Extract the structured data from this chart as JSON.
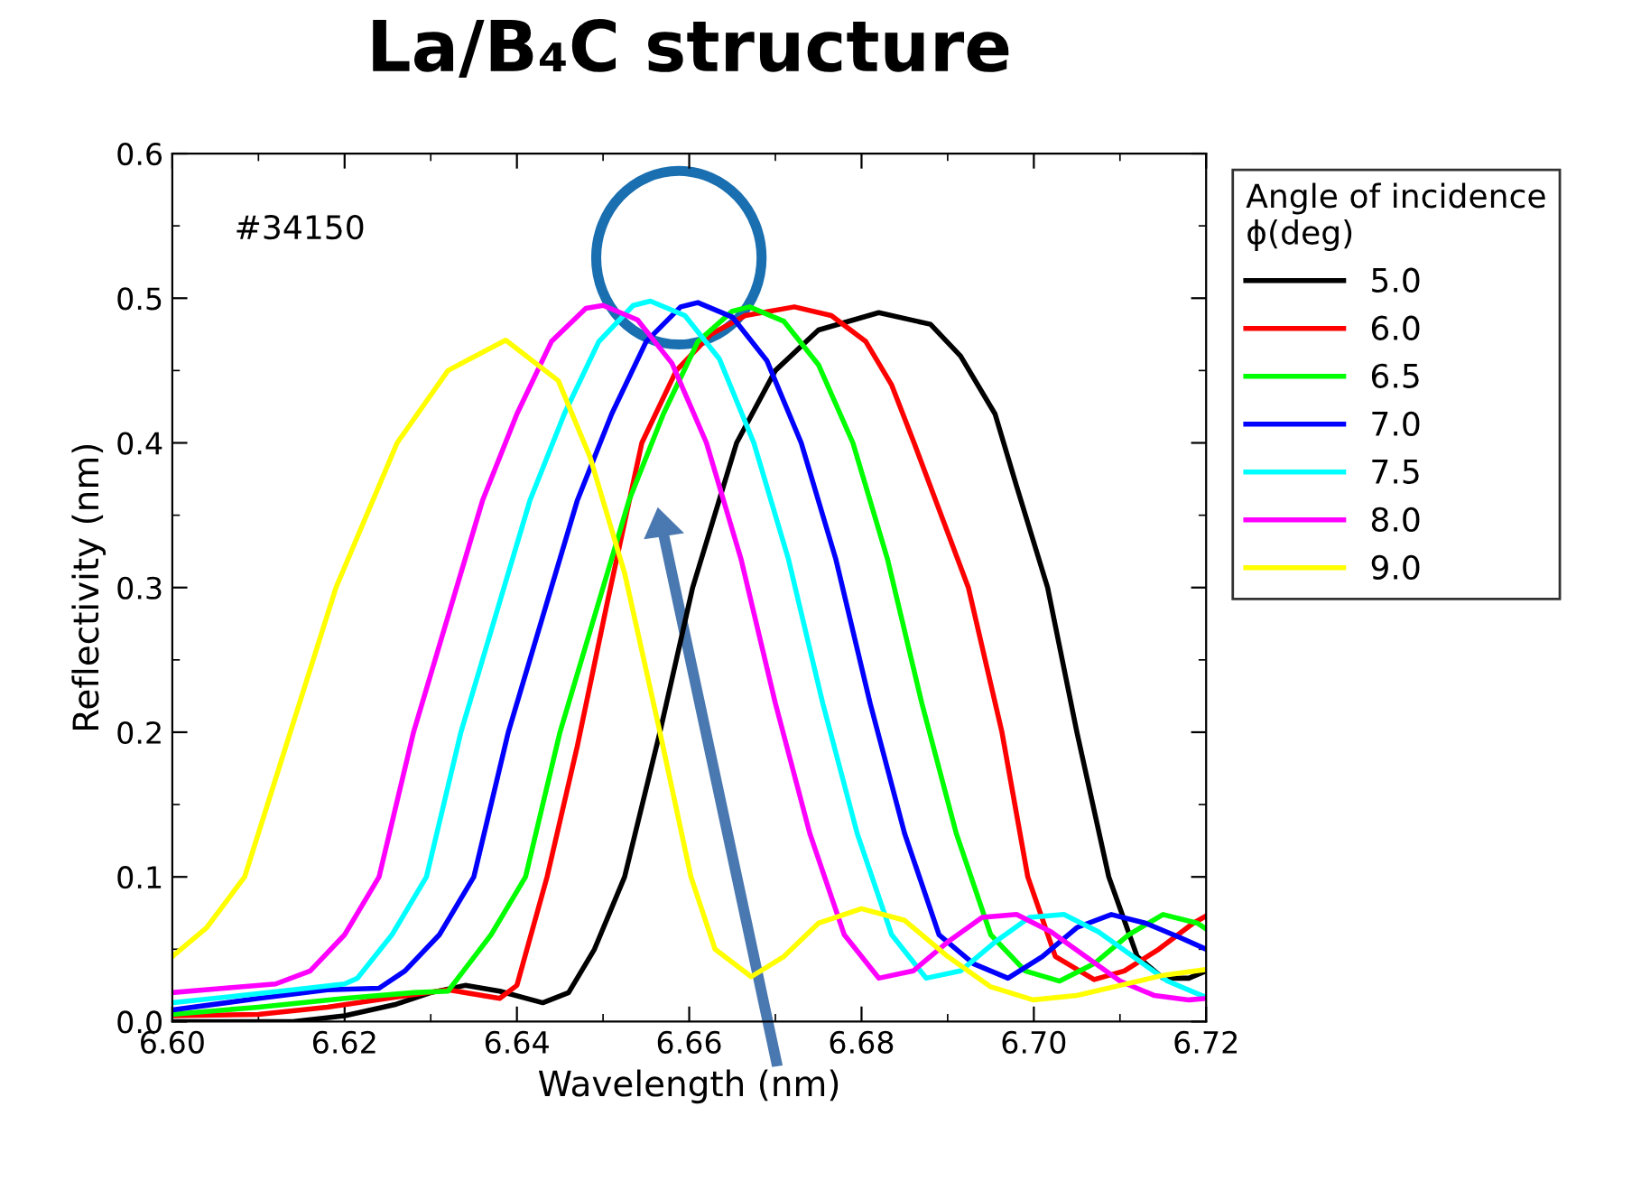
{
  "chart_data": {
    "type": "line",
    "title": "La/B₄C structure",
    "xlabel": "Wavelength (nm)",
    "ylabel": "Reflectivity (nm)",
    "legend_title": "Angle of incidence\nϕ(deg)",
    "annotations": [
      "#34150"
    ],
    "xlim": [
      6.6,
      6.72
    ],
    "xticks": [
      {
        "value": 6.6,
        "label": "6.60"
      },
      6.62,
      6.64,
      6.66,
      6.68,
      {
        "value": 6.7,
        "label": "6.70"
      },
      6.72
    ],
    "ylim": [
      0.0,
      0.6
    ],
    "yticks": [
      {
        "value": 0.0,
        "label": "0.0"
      },
      0.1,
      0.2,
      0.3,
      0.4,
      0.5,
      0.6
    ],
    "grid": false,
    "legend": "top right",
    "marker": "none",
    "line_style": "solid",
    "series": [
      {
        "name": "5.0",
        "color": "#000000",
        "x": [
          6.6,
          6.614,
          6.62,
          6.626,
          6.63,
          6.634,
          6.638,
          6.643,
          6.646,
          6.649,
          6.6525,
          6.6566,
          6.6604,
          6.6655,
          6.67,
          6.675,
          6.682,
          6.688,
          6.6915,
          6.6955,
          6.698,
          6.7016,
          6.705,
          6.7087,
          6.712,
          6.715,
          6.718,
          6.72
        ],
        "values": [
          0.0,
          0.0,
          0.004,
          0.012,
          0.02,
          0.025,
          0.021,
          0.013,
          0.02,
          0.05,
          0.1,
          0.2,
          0.3,
          0.4,
          0.45,
          0.478,
          0.49,
          0.482,
          0.46,
          0.42,
          0.37,
          0.3,
          0.2,
          0.1,
          0.045,
          0.03,
          0.03,
          0.035
        ]
      },
      {
        "name": "6.0",
        "color": "#ff0000",
        "x": [
          6.6,
          6.61,
          6.618,
          6.626,
          6.632,
          6.638,
          6.64,
          6.6435,
          6.647,
          6.6505,
          6.6545,
          6.6585,
          6.6625,
          6.6665,
          6.6722,
          6.6765,
          6.6805,
          6.6835,
          6.6861,
          6.6924,
          6.6963,
          6.6993,
          6.7025,
          6.707,
          6.7105,
          6.7145,
          6.7185,
          6.72
        ],
        "values": [
          0.004,
          0.005,
          0.01,
          0.017,
          0.022,
          0.016,
          0.025,
          0.1,
          0.19,
          0.29,
          0.4,
          0.45,
          0.475,
          0.488,
          0.494,
          0.488,
          0.47,
          0.44,
          0.4,
          0.3,
          0.2,
          0.1,
          0.045,
          0.029,
          0.035,
          0.05,
          0.068,
          0.073
        ]
      },
      {
        "name": "6.5",
        "color": "#00ff00",
        "x": [
          6.6,
          6.61,
          6.62,
          6.628,
          6.632,
          6.637,
          6.641,
          6.645,
          6.649,
          6.653,
          6.657,
          6.661,
          6.665,
          6.667,
          6.671,
          6.675,
          6.679,
          6.683,
          6.687,
          6.691,
          6.695,
          6.699,
          6.703,
          6.707,
          6.711,
          6.715,
          6.719,
          6.72
        ],
        "values": [
          0.005,
          0.01,
          0.016,
          0.02,
          0.021,
          0.06,
          0.1,
          0.2,
          0.28,
          0.36,
          0.42,
          0.47,
          0.491,
          0.494,
          0.484,
          0.454,
          0.4,
          0.32,
          0.22,
          0.13,
          0.06,
          0.035,
          0.028,
          0.04,
          0.06,
          0.074,
          0.068,
          0.064
        ]
      },
      {
        "name": "7.0",
        "color": "#0000ff",
        "x": [
          6.6,
          6.61,
          6.618,
          6.624,
          6.627,
          6.631,
          6.635,
          6.639,
          6.643,
          6.647,
          6.651,
          6.655,
          6.659,
          6.661,
          6.665,
          6.669,
          6.673,
          6.677,
          6.681,
          6.685,
          6.689,
          6.693,
          6.697,
          6.701,
          6.705,
          6.709,
          6.713,
          6.717,
          6.72
        ],
        "values": [
          0.008,
          0.016,
          0.022,
          0.023,
          0.035,
          0.06,
          0.1,
          0.2,
          0.28,
          0.36,
          0.42,
          0.47,
          0.494,
          0.497,
          0.487,
          0.457,
          0.4,
          0.32,
          0.22,
          0.13,
          0.06,
          0.04,
          0.03,
          0.045,
          0.065,
          0.074,
          0.068,
          0.058,
          0.05
        ]
      },
      {
        "name": "7.5",
        "color": "#00ffff",
        "x": [
          6.6,
          6.608,
          6.614,
          6.62,
          6.6215,
          6.6255,
          6.6295,
          6.6335,
          6.6375,
          6.6415,
          6.6455,
          6.6495,
          6.6535,
          6.6555,
          6.6595,
          6.6635,
          6.6675,
          6.6715,
          6.6755,
          6.6795,
          6.6835,
          6.6875,
          6.6915,
          6.6955,
          6.6995,
          6.7035,
          6.7075,
          6.7115,
          6.7155,
          6.7195,
          6.72
        ],
        "values": [
          0.013,
          0.018,
          0.022,
          0.026,
          0.03,
          0.06,
          0.1,
          0.2,
          0.28,
          0.36,
          0.42,
          0.47,
          0.495,
          0.498,
          0.488,
          0.458,
          0.4,
          0.32,
          0.22,
          0.13,
          0.06,
          0.03,
          0.035,
          0.055,
          0.072,
          0.074,
          0.062,
          0.045,
          0.028,
          0.018,
          0.017
        ]
      },
      {
        "name": "8.0",
        "color": "#ff00ff",
        "x": [
          6.6,
          6.606,
          6.612,
          6.616,
          6.62,
          6.624,
          6.628,
          6.632,
          6.636,
          6.64,
          6.644,
          6.648,
          6.65,
          6.654,
          6.658,
          6.662,
          6.666,
          6.67,
          6.674,
          6.678,
          6.682,
          6.686,
          6.69,
          6.694,
          6.698,
          6.702,
          6.706,
          6.71,
          6.714,
          6.718,
          6.72
        ],
        "values": [
          0.02,
          0.023,
          0.026,
          0.035,
          0.06,
          0.1,
          0.2,
          0.28,
          0.36,
          0.42,
          0.47,
          0.493,
          0.495,
          0.485,
          0.455,
          0.4,
          0.32,
          0.22,
          0.13,
          0.06,
          0.03,
          0.035,
          0.055,
          0.072,
          0.074,
          0.062,
          0.045,
          0.028,
          0.018,
          0.015,
          0.016
        ]
      },
      {
        "name": "9.0",
        "color": "#ffff00",
        "x": [
          6.6,
          6.604,
          6.6084,
          6.6137,
          6.619,
          6.6261,
          6.632,
          6.6387,
          6.6448,
          6.6485,
          6.6525,
          6.6566,
          6.6602,
          6.663,
          6.6672,
          6.671,
          6.675,
          6.68,
          6.685,
          6.69,
          6.695,
          6.6999,
          6.705,
          6.71,
          6.715,
          6.72
        ],
        "values": [
          0.045,
          0.065,
          0.1,
          0.2,
          0.3,
          0.4,
          0.45,
          0.471,
          0.443,
          0.39,
          0.31,
          0.2,
          0.1,
          0.05,
          0.031,
          0.045,
          0.068,
          0.078,
          0.07,
          0.045,
          0.024,
          0.015,
          0.018,
          0.025,
          0.032,
          0.036
        ]
      }
    ]
  }
}
